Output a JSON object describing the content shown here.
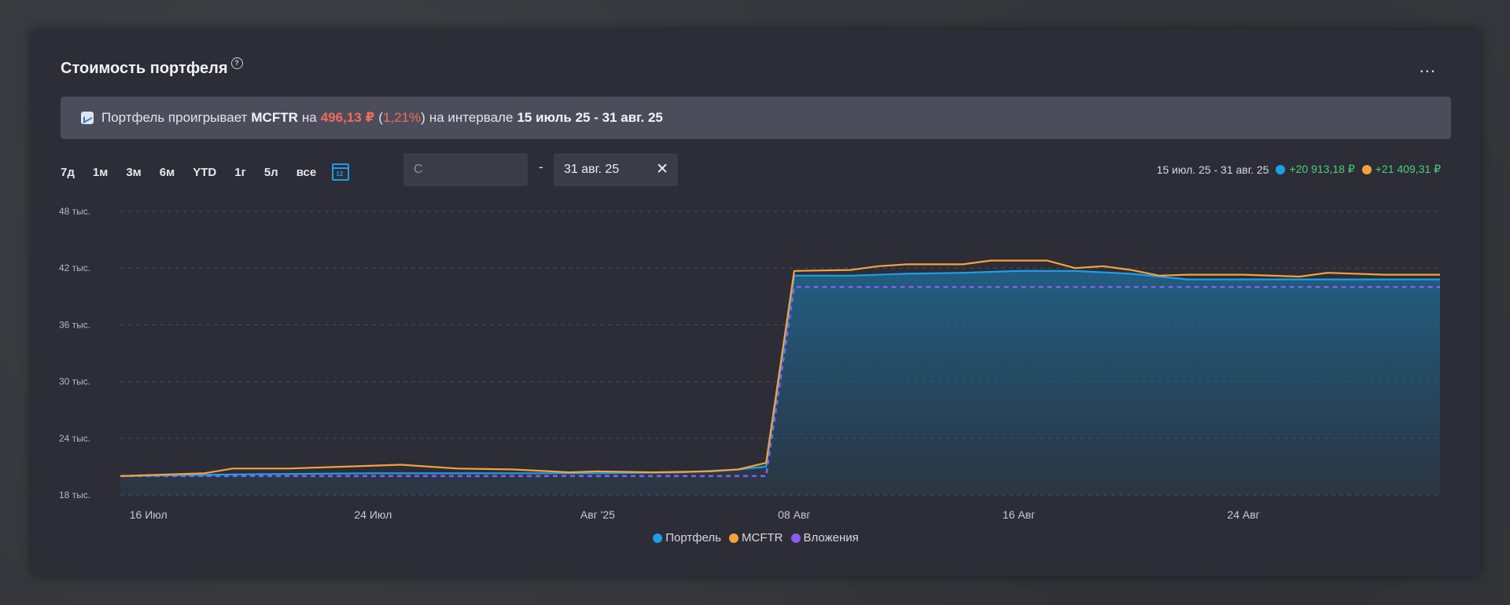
{
  "card": {
    "title": "Стоимость портфеля",
    "help_icon": "question-circle-icon",
    "more_label": "..."
  },
  "banner": {
    "icon": "chart-up-icon",
    "text_1": "Портфель проигрывает",
    "benchmark": "MCFTR",
    "text_2": "на",
    "diff_value": "496,13 ₽",
    "diff_pct_open": "(",
    "diff_pct": "1,21%",
    "diff_pct_close": ")",
    "text_3": "на интервале",
    "interval": "15 июль 25 - 31 авг. 25"
  },
  "ranges": [
    "7д",
    "1м",
    "3м",
    "6м",
    "YTD",
    "1г",
    "5л",
    "все"
  ],
  "calendar_icon": "calendar-icon",
  "calendar_day": "12",
  "date_from": {
    "placeholder": "С"
  },
  "date_separator": "-",
  "date_to": {
    "value": "31 авг. 25",
    "clear_icon": "close-icon"
  },
  "summary": {
    "range": "15 июл. 25 - 31 авг. 25",
    "portfolio_change": "+20 913,18 ₽",
    "mcftr_change": "+21 409,31 ₽"
  },
  "colors": {
    "portfolio": "#1d9fe8",
    "mcftr": "#f7a13c",
    "investments": "#8a5cf0",
    "positive": "#49d17a",
    "negative": "#f26b5b"
  },
  "chart_data": {
    "type": "line",
    "ylim": [
      18000,
      48000
    ],
    "y_ticks": [
      18000,
      24000,
      30000,
      36000,
      42000,
      48000
    ],
    "y_tick_labels": [
      "18 тыс.",
      "24 тыс.",
      "30 тыс.",
      "36 тыс.",
      "42 тыс.",
      "48 тыс."
    ],
    "x_range": [
      "2025-07-15",
      "2025-08-31"
    ],
    "x_ticks": [
      "2025-07-16",
      "2025-07-24",
      "2025-08-01",
      "2025-08-08",
      "2025-08-16",
      "2025-08-24"
    ],
    "x_tick_labels": [
      "16 Июл",
      "24 Июл",
      "Авг '25",
      "08 Авг",
      "16 Авг",
      "24 Авг"
    ],
    "grid": true,
    "legend_position": "bottom-center",
    "series": [
      {
        "name": "Портфель",
        "color": "#1d9fe8",
        "fill": true,
        "points": [
          [
            "2025-07-15",
            20000
          ],
          [
            "2025-07-17",
            20100
          ],
          [
            "2025-07-20",
            20200
          ],
          [
            "2025-07-24",
            20300
          ],
          [
            "2025-07-28",
            20300
          ],
          [
            "2025-08-01",
            20300
          ],
          [
            "2025-08-04",
            20400
          ],
          [
            "2025-08-06",
            20700
          ],
          [
            "2025-08-07",
            21000
          ],
          [
            "2025-08-08",
            41200
          ],
          [
            "2025-08-10",
            41200
          ],
          [
            "2025-08-12",
            41400
          ],
          [
            "2025-08-14",
            41500
          ],
          [
            "2025-08-16",
            41700
          ],
          [
            "2025-08-18",
            41700
          ],
          [
            "2025-08-20",
            41400
          ],
          [
            "2025-08-22",
            40800
          ],
          [
            "2025-08-24",
            40800
          ],
          [
            "2025-08-26",
            40800
          ],
          [
            "2025-08-28",
            40800
          ],
          [
            "2025-08-31",
            40800
          ]
        ]
      },
      {
        "name": "MCFTR",
        "color": "#f7a13c",
        "fill": false,
        "points": [
          [
            "2025-07-15",
            20000
          ],
          [
            "2025-07-17",
            20200
          ],
          [
            "2025-07-18",
            20300
          ],
          [
            "2025-07-19",
            20800
          ],
          [
            "2025-07-21",
            20800
          ],
          [
            "2025-07-23",
            21000
          ],
          [
            "2025-07-25",
            21200
          ],
          [
            "2025-07-27",
            20800
          ],
          [
            "2025-07-29",
            20700
          ],
          [
            "2025-07-31",
            20400
          ],
          [
            "2025-08-01",
            20500
          ],
          [
            "2025-08-03",
            20400
          ],
          [
            "2025-08-05",
            20500
          ],
          [
            "2025-08-06",
            20700
          ],
          [
            "2025-08-07",
            21400
          ],
          [
            "2025-08-08",
            41700
          ],
          [
            "2025-08-10",
            41800
          ],
          [
            "2025-08-11",
            42200
          ],
          [
            "2025-08-12",
            42400
          ],
          [
            "2025-08-14",
            42400
          ],
          [
            "2025-08-15",
            42800
          ],
          [
            "2025-08-17",
            42800
          ],
          [
            "2025-08-18",
            42000
          ],
          [
            "2025-08-19",
            42200
          ],
          [
            "2025-08-20",
            41800
          ],
          [
            "2025-08-21",
            41200
          ],
          [
            "2025-08-22",
            41300
          ],
          [
            "2025-08-24",
            41300
          ],
          [
            "2025-08-26",
            41100
          ],
          [
            "2025-08-27",
            41500
          ],
          [
            "2025-08-29",
            41300
          ],
          [
            "2025-08-31",
            41300
          ]
        ]
      },
      {
        "name": "Вложения",
        "color": "#8a5cf0",
        "style": "dashed",
        "fill": false,
        "points": [
          [
            "2025-07-15",
            20000
          ],
          [
            "2025-08-07",
            20000
          ],
          [
            "2025-08-08",
            40000
          ],
          [
            "2025-08-31",
            40000
          ]
        ]
      }
    ]
  }
}
